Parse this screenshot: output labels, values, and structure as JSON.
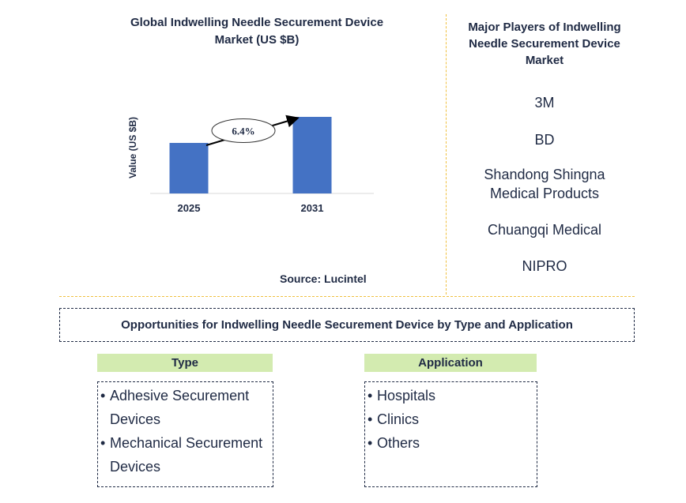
{
  "chart_data": {
    "type": "bar",
    "title": "Global Indwelling Needle Securement Device Market (US $B)",
    "ylabel": "Value (US $B)",
    "categories": [
      "2025",
      "2031"
    ],
    "values": [
      0.66,
      1.0
    ],
    "annotation": "6.4%",
    "ylim": [
      0,
      1.0
    ],
    "bar_color": "#4472c4"
  },
  "source": "Source: Lucintel",
  "players": {
    "title": "Major Players of Indwelling Needle Securement Device Market",
    "items": [
      "3M",
      "BD",
      "Shandong Shingna Medical Products",
      "Chuangqi Medical",
      "NIPRO"
    ]
  },
  "opportunities": {
    "title": "Opportunities for Indwelling Needle Securement Device by Type and Application"
  },
  "type_segment": {
    "header": "Type",
    "items": [
      "Adhesive Securement Devices",
      "Mechanical Securement Devices"
    ]
  },
  "application_segment": {
    "header": "Application",
    "items": [
      "Hospitals",
      "Clinics",
      "Others"
    ]
  },
  "colors": {
    "accent": "#4472c4",
    "divider": "#f0c040",
    "segment_header": "#d3ebb0",
    "text": "#1f2a44"
  }
}
